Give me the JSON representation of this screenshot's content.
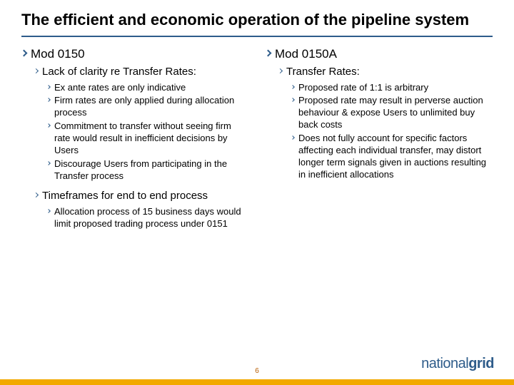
{
  "title": "The efficient and economic operation of the pipeline system",
  "pageNumber": "6",
  "colors": {
    "accent": "#2e5c8a",
    "footer": "#f2a900",
    "pagenum": "#b85c00"
  },
  "left": {
    "heading": "Mod 0150",
    "sub1": "Lack of clarity re Transfer Rates:",
    "items1": [
      "Ex ante rates are only indicative",
      "Firm rates are only applied during allocation process",
      "Commitment to transfer without seeing firm rate would result in inefficient decisions by Users",
      "Discourage Users from participating in the Transfer process"
    ],
    "sub2": "Timeframes for end to end process",
    "items2": [
      "Allocation process of 15 business days would limit proposed trading process under 0151"
    ]
  },
  "right": {
    "heading": "Mod 0150A",
    "sub1": "Transfer Rates:",
    "items1": [
      "Proposed rate of 1:1 is arbitrary",
      "Proposed rate may result in perverse auction behaviour & expose Users to unlimited buy back costs",
      "Does not fully account for specific factors affecting each individual transfer, may distort longer term signals given in auctions resulting in inefficient allocations"
    ]
  },
  "logo": {
    "part1": "national",
    "part2": "grid"
  }
}
